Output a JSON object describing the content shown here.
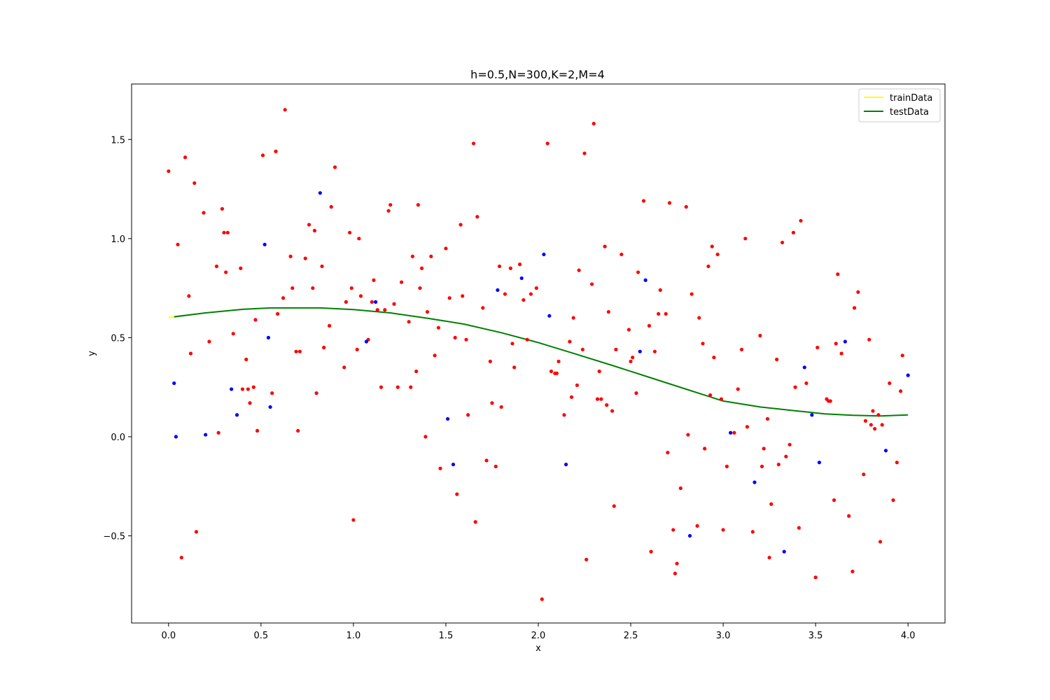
{
  "chart_data": {
    "type": "scatter",
    "title": "h=0.5,N=300,K=2,M=4",
    "xlabel": "x",
    "ylabel": "y",
    "xlim": [
      -0.2,
      4.2
    ],
    "ylim": [
      -0.94,
      1.78
    ],
    "xticks": [
      0.0,
      0.5,
      1.0,
      1.5,
      2.0,
      2.5,
      3.0,
      3.5,
      4.0
    ],
    "xtick_labels": [
      "0.0",
      "0.5",
      "1.0",
      "1.5",
      "2.0",
      "2.5",
      "3.0",
      "3.5",
      "4.0"
    ],
    "yticks": [
      -0.5,
      0.0,
      0.5,
      1.0,
      1.5
    ],
    "ytick_labels": [
      "−0.5",
      "0.0",
      "0.5",
      "1.0",
      "1.5"
    ],
    "grid": false,
    "legend_position": "top-right",
    "colors": {
      "train_line": "#ffff00",
      "test_line": "#008000",
      "red_points": "#ff0000",
      "blue_points": "#0000ff"
    },
    "series": [
      {
        "name": "trainData",
        "kind": "line",
        "color": "#ffff00",
        "x": [
          0.0,
          0.03
        ],
        "y": [
          0.6,
          0.605
        ]
      },
      {
        "name": "testData",
        "kind": "line",
        "color": "#008000",
        "x": [
          0.03,
          0.2,
          0.4,
          0.55,
          0.7,
          0.82,
          1.0,
          1.2,
          1.4,
          1.6,
          1.8,
          2.0,
          2.2,
          2.4,
          2.6,
          2.8,
          3.0,
          3.2,
          3.4,
          3.55,
          3.7,
          3.85,
          4.0
        ],
        "y": [
          0.605,
          0.625,
          0.643,
          0.65,
          0.65,
          0.65,
          0.642,
          0.625,
          0.598,
          0.568,
          0.525,
          0.475,
          0.418,
          0.36,
          0.3,
          0.24,
          0.18,
          0.15,
          0.13,
          0.115,
          0.108,
          0.105,
          0.11
        ]
      },
      {
        "kind": "scatter",
        "color": "#ff0000",
        "points": [
          [
            0.0,
            1.34
          ],
          [
            0.05,
            0.97
          ],
          [
            0.07,
            -0.61
          ],
          [
            0.09,
            1.41
          ],
          [
            0.11,
            0.71
          ],
          [
            0.12,
            0.42
          ],
          [
            0.14,
            1.28
          ],
          [
            0.15,
            -0.48
          ],
          [
            0.19,
            1.13
          ],
          [
            0.22,
            0.48
          ],
          [
            0.26,
            0.86
          ],
          [
            0.27,
            0.02
          ],
          [
            0.29,
            1.15
          ],
          [
            0.3,
            1.03
          ],
          [
            0.31,
            0.83
          ],
          [
            0.32,
            1.03
          ],
          [
            0.35,
            0.52
          ],
          [
            0.39,
            0.85
          ],
          [
            0.4,
            0.24
          ],
          [
            0.42,
            0.39
          ],
          [
            0.43,
            0.24
          ],
          [
            0.44,
            0.17
          ],
          [
            0.46,
            0.25
          ],
          [
            0.47,
            0.59
          ],
          [
            0.48,
            0.03
          ],
          [
            0.51,
            1.42
          ],
          [
            0.56,
            0.22
          ],
          [
            0.58,
            1.44
          ],
          [
            0.59,
            0.62
          ],
          [
            0.62,
            0.7
          ],
          [
            0.63,
            1.65
          ],
          [
            0.66,
            0.91
          ],
          [
            0.67,
            0.75
          ],
          [
            0.69,
            0.43
          ],
          [
            0.7,
            0.03
          ],
          [
            0.71,
            0.43
          ],
          [
            0.74,
            0.9
          ],
          [
            0.76,
            1.07
          ],
          [
            0.78,
            0.75
          ],
          [
            0.79,
            1.04
          ],
          [
            0.8,
            0.22
          ],
          [
            0.83,
            0.86
          ],
          [
            0.84,
            0.45
          ],
          [
            0.87,
            0.56
          ],
          [
            0.88,
            1.16
          ],
          [
            0.9,
            1.36
          ],
          [
            0.95,
            0.35
          ],
          [
            0.96,
            0.68
          ],
          [
            0.98,
            1.03
          ],
          [
            0.99,
            0.75
          ],
          [
            1.0,
            -0.42
          ],
          [
            1.02,
            0.44
          ],
          [
            1.03,
            1.0
          ],
          [
            1.04,
            0.71
          ],
          [
            1.08,
            0.49
          ],
          [
            1.1,
            0.68
          ],
          [
            1.11,
            0.79
          ],
          [
            1.13,
            0.64
          ],
          [
            1.15,
            0.25
          ],
          [
            1.17,
            0.64
          ],
          [
            1.19,
            1.14
          ],
          [
            1.2,
            1.17
          ],
          [
            1.22,
            0.67
          ],
          [
            1.24,
            0.25
          ],
          [
            1.26,
            0.78
          ],
          [
            1.3,
            0.58
          ],
          [
            1.31,
            0.25
          ],
          [
            1.32,
            0.91
          ],
          [
            1.34,
            0.33
          ],
          [
            1.35,
            1.17
          ],
          [
            1.36,
            0.75
          ],
          [
            1.37,
            0.85
          ],
          [
            1.39,
            0.0
          ],
          [
            1.4,
            0.63
          ],
          [
            1.42,
            0.91
          ],
          [
            1.44,
            0.41
          ],
          [
            1.46,
            0.55
          ],
          [
            1.47,
            -0.16
          ],
          [
            1.5,
            0.95
          ],
          [
            1.52,
            0.7
          ],
          [
            1.55,
            0.5
          ],
          [
            1.56,
            -0.29
          ],
          [
            1.58,
            1.07
          ],
          [
            1.59,
            0.71
          ],
          [
            1.61,
            0.49
          ],
          [
            1.62,
            0.11
          ],
          [
            1.65,
            1.48
          ],
          [
            1.66,
            -0.43
          ],
          [
            1.67,
            1.11
          ],
          [
            1.7,
            0.65
          ],
          [
            1.72,
            -0.12
          ],
          [
            1.74,
            0.38
          ],
          [
            1.75,
            0.17
          ],
          [
            1.77,
            -0.15
          ],
          [
            1.79,
            0.86
          ],
          [
            1.8,
            0.15
          ],
          [
            1.82,
            0.72
          ],
          [
            1.85,
            0.85
          ],
          [
            1.86,
            0.47
          ],
          [
            1.87,
            0.35
          ],
          [
            1.9,
            0.87
          ],
          [
            1.92,
            0.69
          ],
          [
            1.94,
            0.49
          ],
          [
            1.96,
            0.72
          ],
          [
            1.99,
            0.75
          ],
          [
            2.02,
            -0.82
          ],
          [
            2.05,
            1.48
          ],
          [
            2.07,
            0.33
          ],
          [
            2.09,
            0.32
          ],
          [
            2.1,
            0.32
          ],
          [
            2.11,
            0.38
          ],
          [
            2.14,
            0.11
          ],
          [
            2.17,
            0.48
          ],
          [
            2.18,
            0.2
          ],
          [
            2.19,
            0.6
          ],
          [
            2.21,
            0.26
          ],
          [
            2.22,
            0.84
          ],
          [
            2.24,
            0.44
          ],
          [
            2.25,
            1.43
          ],
          [
            2.26,
            -0.62
          ],
          [
            2.29,
            0.77
          ],
          [
            2.3,
            1.58
          ],
          [
            2.32,
            0.19
          ],
          [
            2.33,
            0.33
          ],
          [
            2.34,
            0.19
          ],
          [
            2.36,
            0.96
          ],
          [
            2.37,
            0.16
          ],
          [
            2.38,
            0.63
          ],
          [
            2.4,
            0.13
          ],
          [
            2.41,
            -0.35
          ],
          [
            2.42,
            0.44
          ],
          [
            2.45,
            0.92
          ],
          [
            2.49,
            0.54
          ],
          [
            2.5,
            0.38
          ],
          [
            2.51,
            0.4
          ],
          [
            2.53,
            0.22
          ],
          [
            2.54,
            0.83
          ],
          [
            2.57,
            1.19
          ],
          [
            2.6,
            0.56
          ],
          [
            2.61,
            -0.58
          ],
          [
            2.63,
            0.43
          ],
          [
            2.65,
            0.62
          ],
          [
            2.66,
            0.74
          ],
          [
            2.69,
            0.62
          ],
          [
            2.7,
            -0.08
          ],
          [
            2.71,
            1.18
          ],
          [
            2.73,
            -0.47
          ],
          [
            2.74,
            -0.69
          ],
          [
            2.75,
            -0.64
          ],
          [
            2.77,
            -0.26
          ],
          [
            2.8,
            1.16
          ],
          [
            2.81,
            0.01
          ],
          [
            2.83,
            0.72
          ],
          [
            2.86,
            -0.45
          ],
          [
            2.87,
            0.6
          ],
          [
            2.89,
            0.47
          ],
          [
            2.9,
            -0.06
          ],
          [
            2.92,
            0.86
          ],
          [
            2.93,
            0.21
          ],
          [
            2.94,
            0.96
          ],
          [
            2.95,
            0.4
          ],
          [
            2.97,
            0.92
          ],
          [
            2.99,
            0.19
          ],
          [
            3.0,
            -0.47
          ],
          [
            3.02,
            -0.15
          ],
          [
            3.06,
            0.02
          ],
          [
            3.08,
            0.24
          ],
          [
            3.1,
            0.44
          ],
          [
            3.12,
            1.0
          ],
          [
            3.13,
            0.05
          ],
          [
            3.16,
            -0.48
          ],
          [
            3.2,
            0.51
          ],
          [
            3.21,
            -0.15
          ],
          [
            3.22,
            -0.06
          ],
          [
            3.24,
            0.09
          ],
          [
            3.25,
            -0.61
          ],
          [
            3.26,
            -0.34
          ],
          [
            3.29,
            0.39
          ],
          [
            3.3,
            -0.14
          ],
          [
            3.32,
            0.98
          ],
          [
            3.34,
            -0.1
          ],
          [
            3.36,
            -0.04
          ],
          [
            3.38,
            1.03
          ],
          [
            3.39,
            0.25
          ],
          [
            3.41,
            -0.46
          ],
          [
            3.42,
            1.09
          ],
          [
            3.45,
            0.27
          ],
          [
            3.5,
            -0.71
          ],
          [
            3.51,
            0.45
          ],
          [
            3.56,
            0.19
          ],
          [
            3.57,
            0.18
          ],
          [
            3.58,
            0.18
          ],
          [
            3.6,
            -0.32
          ],
          [
            3.61,
            0.47
          ],
          [
            3.62,
            0.82
          ],
          [
            3.64,
            0.42
          ],
          [
            3.68,
            -0.4
          ],
          [
            3.7,
            -0.68
          ],
          [
            3.71,
            0.65
          ],
          [
            3.73,
            0.73
          ],
          [
            3.76,
            -0.19
          ],
          [
            3.77,
            0.08
          ],
          [
            3.79,
            0.49
          ],
          [
            3.8,
            0.06
          ],
          [
            3.81,
            0.13
          ],
          [
            3.82,
            0.04
          ],
          [
            3.84,
            0.11
          ],
          [
            3.85,
            -0.53
          ],
          [
            3.86,
            0.06
          ],
          [
            3.9,
            0.27
          ],
          [
            3.92,
            -0.32
          ],
          [
            3.94,
            -0.13
          ],
          [
            3.96,
            0.23
          ],
          [
            3.97,
            0.41
          ]
        ]
      },
      {
        "kind": "scatter",
        "color": "#0000ff",
        "points": [
          [
            0.03,
            0.27
          ],
          [
            0.04,
            0.0
          ],
          [
            0.2,
            0.01
          ],
          [
            0.34,
            0.24
          ],
          [
            0.37,
            0.11
          ],
          [
            0.52,
            0.97
          ],
          [
            0.54,
            0.5
          ],
          [
            0.55,
            0.15
          ],
          [
            0.82,
            1.23
          ],
          [
            1.07,
            0.48
          ],
          [
            1.12,
            0.68
          ],
          [
            1.51,
            0.09
          ],
          [
            1.54,
            -0.14
          ],
          [
            1.78,
            0.74
          ],
          [
            1.91,
            0.8
          ],
          [
            2.03,
            0.92
          ],
          [
            2.06,
            0.61
          ],
          [
            2.15,
            -0.14
          ],
          [
            2.55,
            0.43
          ],
          [
            2.58,
            0.79
          ],
          [
            2.82,
            -0.5
          ],
          [
            3.04,
            0.02
          ],
          [
            3.17,
            -0.23
          ],
          [
            3.33,
            -0.58
          ],
          [
            3.44,
            0.35
          ],
          [
            3.48,
            0.11
          ],
          [
            3.52,
            -0.13
          ],
          [
            3.66,
            0.48
          ],
          [
            3.88,
            -0.07
          ],
          [
            4.0,
            0.31
          ]
        ]
      }
    ]
  }
}
